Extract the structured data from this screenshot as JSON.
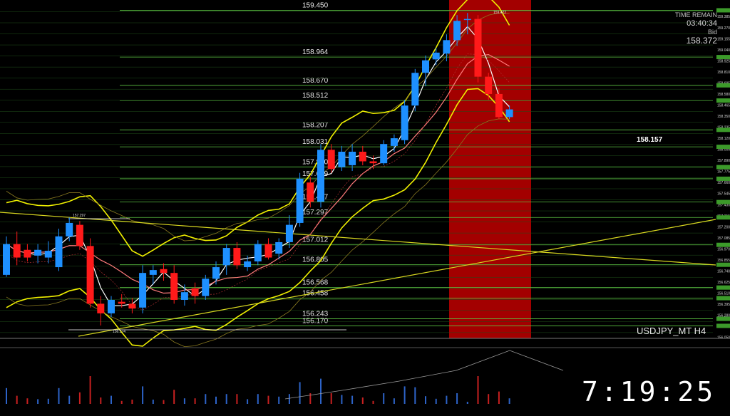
{
  "header": {
    "time_remain_label": "TIME REMAIN",
    "time_remain_value": "03:40:34",
    "bid_label": "Bid",
    "bid_price": "158.372"
  },
  "current_price_label": "158.157",
  "symbol": "USDJPY_MT H4",
  "clock": "7:19:25",
  "colors": {
    "bull": "#1e90ff",
    "bear": "#ff1a1a",
    "level": "#5cc443",
    "highlight": "#a30000"
  },
  "chart_data": {
    "type": "candlestick",
    "y_range": [
      156.04,
      159.52
    ],
    "levels": [
      159.45,
      158.964,
      158.67,
      158.512,
      158.207,
      158.031,
      157.82,
      157.699,
      157.457,
      157.297,
      157.012,
      156.805,
      156.568,
      156.458,
      156.243,
      156.17
    ],
    "candles": [
      {
        "o": 156.7,
        "h": 157.1,
        "l": 156.68,
        "c": 157.02
      },
      {
        "o": 157.02,
        "h": 157.15,
        "l": 156.8,
        "c": 156.88
      },
      {
        "o": 156.96,
        "h": 157.02,
        "l": 156.84,
        "c": 156.88
      },
      {
        "o": 156.9,
        "h": 157.02,
        "l": 156.82,
        "c": 156.96
      },
      {
        "o": 156.88,
        "h": 157.05,
        "l": 156.82,
        "c": 156.95
      },
      {
        "o": 156.78,
        "h": 157.18,
        "l": 156.74,
        "c": 157.1
      },
      {
        "o": 157.1,
        "h": 157.297,
        "l": 157.05,
        "c": 157.24
      },
      {
        "o": 157.22,
        "h": 157.26,
        "l": 156.96,
        "c": 157.0
      },
      {
        "o": 157.0,
        "h": 157.08,
        "l": 156.36,
        "c": 156.4
      },
      {
        "o": 156.4,
        "h": 156.48,
        "l": 156.174,
        "c": 156.3
      },
      {
        "o": 156.3,
        "h": 156.48,
        "l": 156.26,
        "c": 156.44
      },
      {
        "o": 156.42,
        "h": 156.5,
        "l": 156.36,
        "c": 156.4
      },
      {
        "o": 156.4,
        "h": 156.46,
        "l": 156.3,
        "c": 156.35
      },
      {
        "o": 156.36,
        "h": 156.8,
        "l": 156.3,
        "c": 156.72
      },
      {
        "o": 156.7,
        "h": 156.8,
        "l": 156.6,
        "c": 156.75
      },
      {
        "o": 156.76,
        "h": 156.82,
        "l": 156.64,
        "c": 156.72
      },
      {
        "o": 156.72,
        "h": 156.8,
        "l": 156.4,
        "c": 156.44
      },
      {
        "o": 156.44,
        "h": 156.6,
        "l": 156.38,
        "c": 156.52
      },
      {
        "o": 156.56,
        "h": 156.62,
        "l": 156.4,
        "c": 156.48
      },
      {
        "o": 156.48,
        "h": 156.7,
        "l": 156.44,
        "c": 156.66
      },
      {
        "o": 156.66,
        "h": 156.84,
        "l": 156.6,
        "c": 156.78
      },
      {
        "o": 156.8,
        "h": 157.02,
        "l": 156.7,
        "c": 156.98
      },
      {
        "o": 156.98,
        "h": 157.04,
        "l": 156.76,
        "c": 156.8
      },
      {
        "o": 156.78,
        "h": 156.9,
        "l": 156.74,
        "c": 156.84
      },
      {
        "o": 156.84,
        "h": 157.06,
        "l": 156.8,
        "c": 157.02
      },
      {
        "o": 157.02,
        "h": 157.08,
        "l": 156.86,
        "c": 156.88
      },
      {
        "o": 156.92,
        "h": 157.08,
        "l": 156.86,
        "c": 157.04
      },
      {
        "o": 157.04,
        "h": 157.32,
        "l": 156.98,
        "c": 157.22
      },
      {
        "o": 157.24,
        "h": 157.76,
        "l": 157.2,
        "c": 157.7
      },
      {
        "o": 157.66,
        "h": 157.72,
        "l": 157.4,
        "c": 157.46
      },
      {
        "o": 157.46,
        "h": 158.06,
        "l": 157.4,
        "c": 158.0
      },
      {
        "o": 158.0,
        "h": 158.06,
        "l": 157.76,
        "c": 157.8
      },
      {
        "o": 157.82,
        "h": 158.04,
        "l": 157.78,
        "c": 157.98
      },
      {
        "o": 157.84,
        "h": 158.06,
        "l": 157.78,
        "c": 157.98
      },
      {
        "o": 157.98,
        "h": 158.04,
        "l": 157.84,
        "c": 157.88
      },
      {
        "o": 157.88,
        "h": 157.94,
        "l": 157.8,
        "c": 157.86
      },
      {
        "o": 157.86,
        "h": 158.1,
        "l": 157.84,
        "c": 158.06
      },
      {
        "o": 158.04,
        "h": 158.16,
        "l": 157.98,
        "c": 158.12
      },
      {
        "o": 158.1,
        "h": 158.52,
        "l": 158.06,
        "c": 158.46
      },
      {
        "o": 158.46,
        "h": 158.84,
        "l": 158.4,
        "c": 158.8
      },
      {
        "o": 158.8,
        "h": 158.98,
        "l": 158.66,
        "c": 158.93
      },
      {
        "o": 158.94,
        "h": 159.06,
        "l": 158.88,
        "c": 159.01
      },
      {
        "o": 159.0,
        "h": 159.2,
        "l": 158.92,
        "c": 159.14
      },
      {
        "o": 159.14,
        "h": 159.4,
        "l": 159.08,
        "c": 159.34
      },
      {
        "o": 159.36,
        "h": 159.422,
        "l": 159.2,
        "c": 159.36
      },
      {
        "o": 159.36,
        "h": 159.4,
        "l": 158.7,
        "c": 158.76
      },
      {
        "o": 158.76,
        "h": 158.8,
        "l": 158.52,
        "c": 158.58
      },
      {
        "o": 158.58,
        "h": 158.64,
        "l": 158.32,
        "c": 158.34
      },
      {
        "o": 158.34,
        "h": 158.46,
        "l": 158.32,
        "c": 158.42
      }
    ],
    "high_marker": "159.422",
    "low_marker": "156.174",
    "swing_marker": "157.297"
  }
}
